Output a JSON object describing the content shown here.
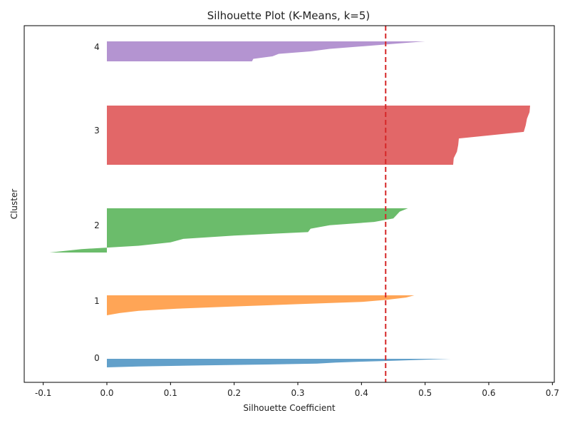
{
  "chart_data": {
    "type": "area",
    "title": "Silhouette Plot (K-Means, k=5)",
    "xlabel": "Silhouette Coefficient",
    "ylabel": "Cluster",
    "xlim": [
      -0.1,
      0.7
    ],
    "xticks": [
      "-0.1",
      "0.0",
      "0.1",
      "0.2",
      "0.3",
      "0.4",
      "0.5",
      "0.6",
      "0.7"
    ],
    "grid": false,
    "average_silhouette": 0.438,
    "average_line_color": "#d62728",
    "clusters": [
      {
        "label": "0",
        "color": "#1f77b4",
        "values": [
          0.54,
          0.5,
          0.45,
          0.4,
          0.36,
          0.33,
          0.25,
          0.15,
          0.05,
          0.0
        ]
      },
      {
        "label": "1",
        "color": "#ff7f0e",
        "values": [
          0.483,
          0.47,
          0.44,
          0.4,
          0.3,
          0.2,
          0.11,
          0.05,
          0.02,
          0.0
        ]
      },
      {
        "label": "2",
        "color": "#2ca02c",
        "values": [
          0.473,
          0.46,
          0.455,
          0.45,
          0.42,
          0.35,
          0.32,
          0.316,
          0.2,
          0.12,
          0.1,
          0.05,
          -0.04,
          -0.09
        ]
      },
      {
        "label": "3",
        "color": "#d62728",
        "values": [
          0.665,
          0.664,
          0.66,
          0.658,
          0.655,
          0.553,
          0.552,
          0.55,
          0.545,
          0.544
        ]
      },
      {
        "label": "4",
        "color": "#9467bd",
        "values": [
          0.5,
          0.45,
          0.4,
          0.35,
          0.32,
          0.27,
          0.26,
          0.23,
          0.228
        ]
      }
    ]
  }
}
